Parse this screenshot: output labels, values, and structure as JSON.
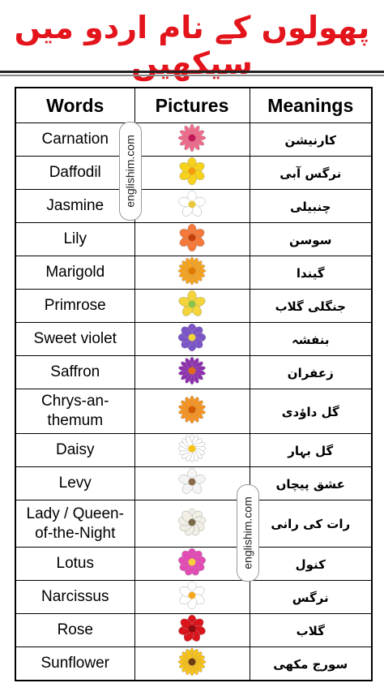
{
  "header": {
    "title": "پھولوں کے نام اردو میں سیکھیں"
  },
  "table": {
    "columns": [
      "Words",
      "Pictures",
      "Meanings"
    ],
    "rows": [
      [
        "Carnation",
        "کارنیشن"
      ],
      [
        "Daffodil",
        "نرگس آبی"
      ],
      [
        "Jasmine",
        "چنبیلی"
      ],
      [
        "Lily",
        "سوسن"
      ],
      [
        "Marigold",
        "گیندا"
      ],
      [
        "Primrose",
        "جنگلی گلاب"
      ],
      [
        "Sweet violet",
        "بنفشہ"
      ],
      [
        "Saffron",
        "زعفران"
      ],
      [
        "Chrys-an-themum",
        "گل داؤدی"
      ],
      [
        "Daisy",
        "گل بہار"
      ],
      [
        "Levy",
        "عشق پیچاں"
      ],
      [
        "Lady / Queen-of-the-Night",
        "رات کی رانی"
      ],
      [
        "Lotus",
        "کنول"
      ],
      [
        "Narcissus",
        "نرگس"
      ],
      [
        "Rose",
        "گلاب"
      ],
      [
        "Sunflower",
        "سورج مکھی"
      ]
    ]
  },
  "watermarks": [
    "englishim.com",
    "englishim.com"
  ]
}
